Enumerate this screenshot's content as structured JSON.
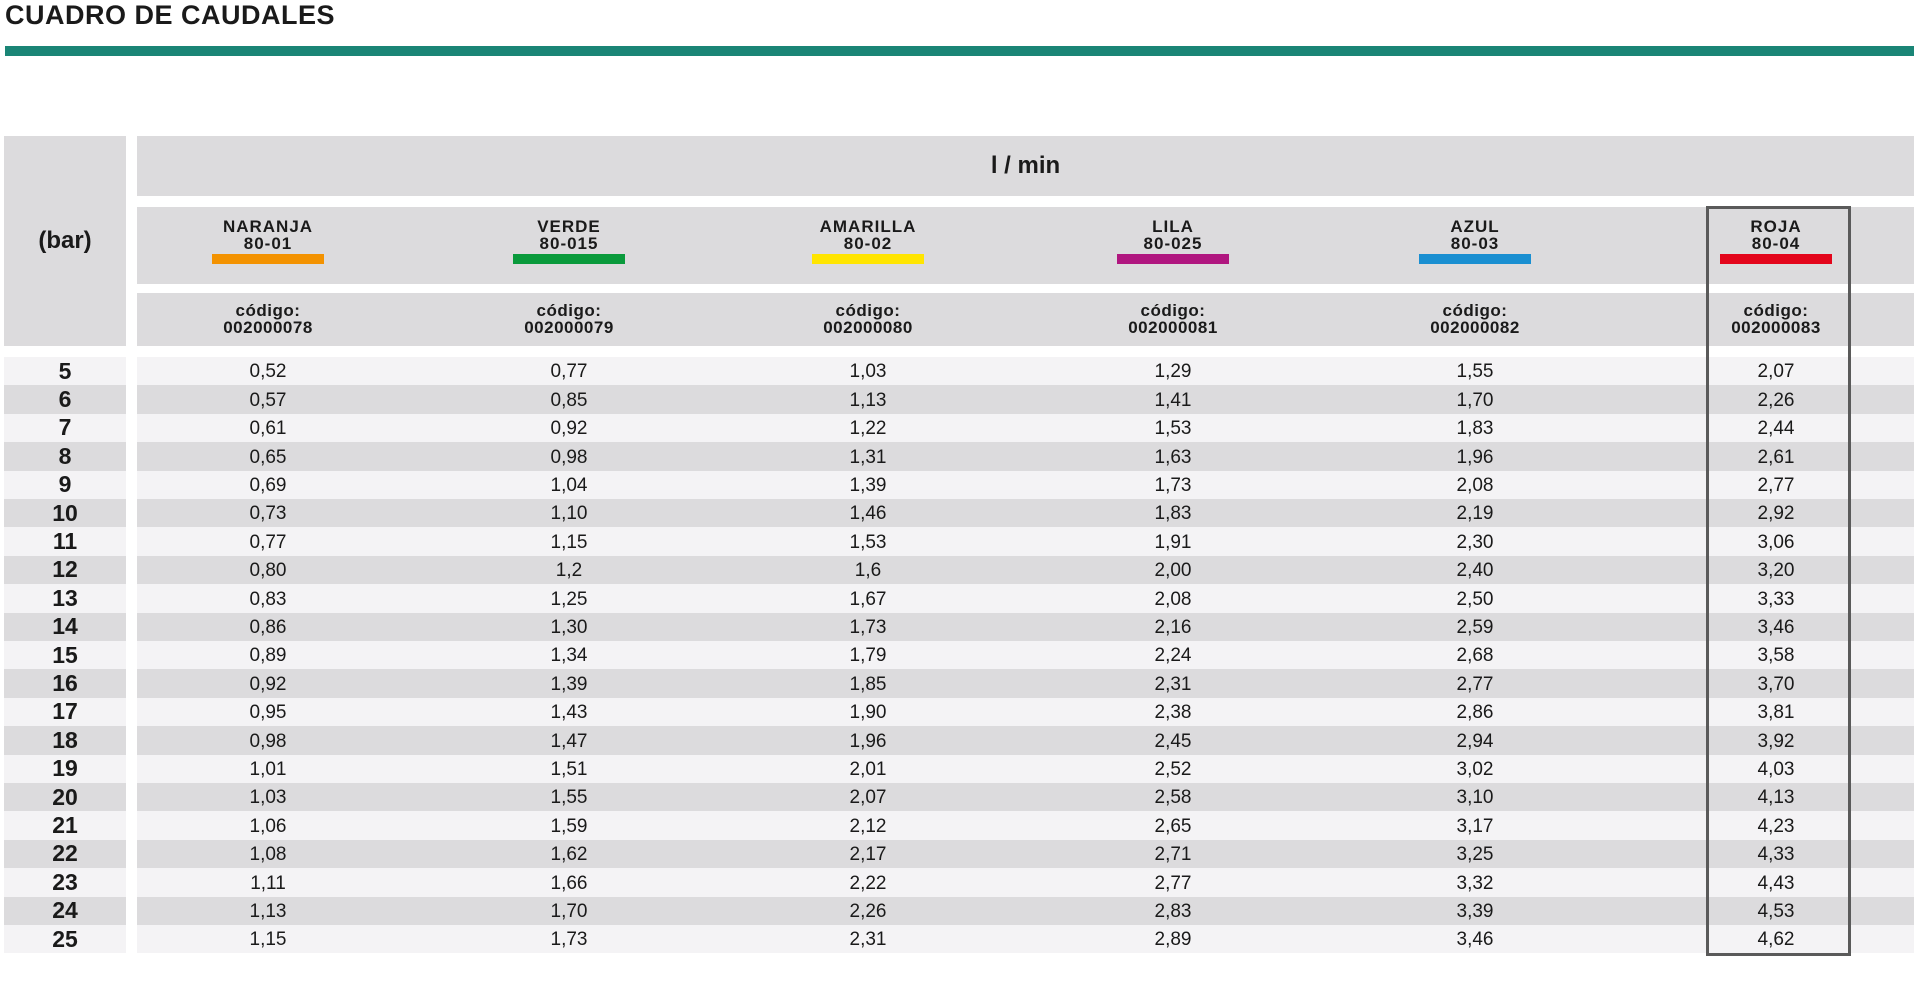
{
  "title": "CUADRO DE CAUDALES",
  "header": {
    "pressure_label": "(bar)",
    "unit_label": "l / min",
    "code_prefix": "código:"
  },
  "nozzles": [
    {
      "name": "NARANJA",
      "model": "80-01",
      "color": "#f39200",
      "code": "002000078"
    },
    {
      "name": "VERDE",
      "model": "80-015",
      "color": "#0a9a3c",
      "code": "002000079"
    },
    {
      "name": "AMARILLA",
      "model": "80-02",
      "color": "#ffe500",
      "code": "002000080"
    },
    {
      "name": "LILA",
      "model": "80-025",
      "color": "#b0167f",
      "code": "002000081"
    },
    {
      "name": "AZUL",
      "model": "80-03",
      "color": "#1a8fd1",
      "code": "002000082"
    },
    {
      "name": "ROJA",
      "model": "80-04",
      "color": "#e3051b",
      "code": "002000083"
    }
  ],
  "colors": {
    "accent_rule": "#1a8576",
    "header_fill": "#dcdbdd",
    "row_light": "#f4f3f5",
    "row_dark": "#dcdbdd",
    "highlight_border": "#5a5a5a"
  },
  "rows": [
    {
      "bar": "5",
      "values": [
        "0,52",
        "0,77",
        "1,03",
        "1,29",
        "1,55",
        "2,07"
      ]
    },
    {
      "bar": "6",
      "values": [
        "0,57",
        "0,85",
        "1,13",
        "1,41",
        "1,70",
        "2,26"
      ]
    },
    {
      "bar": "7",
      "values": [
        "0,61",
        "0,92",
        "1,22",
        "1,53",
        "1,83",
        "2,44"
      ]
    },
    {
      "bar": "8",
      "values": [
        "0,65",
        "0,98",
        "1,31",
        "1,63",
        "1,96",
        "2,61"
      ]
    },
    {
      "bar": "9",
      "values": [
        "0,69",
        "1,04",
        "1,39",
        "1,73",
        "2,08",
        "2,77"
      ]
    },
    {
      "bar": "10",
      "values": [
        "0,73",
        "1,10",
        "1,46",
        "1,83",
        "2,19",
        "2,92"
      ]
    },
    {
      "bar": "11",
      "values": [
        "0,77",
        "1,15",
        "1,53",
        "1,91",
        "2,30",
        "3,06"
      ]
    },
    {
      "bar": "12",
      "values": [
        "0,80",
        "1,2",
        "1,6",
        "2,00",
        "2,40",
        "3,20"
      ]
    },
    {
      "bar": "13",
      "values": [
        "0,83",
        "1,25",
        "1,67",
        "2,08",
        "2,50",
        "3,33"
      ]
    },
    {
      "bar": "14",
      "values": [
        "0,86",
        "1,30",
        "1,73",
        "2,16",
        "2,59",
        "3,46"
      ]
    },
    {
      "bar": "15",
      "values": [
        "0,89",
        "1,34",
        "1,79",
        "2,24",
        "2,68",
        "3,58"
      ]
    },
    {
      "bar": "16",
      "values": [
        "0,92",
        "1,39",
        "1,85",
        "2,31",
        "2,77",
        "3,70"
      ]
    },
    {
      "bar": "17",
      "values": [
        "0,95",
        "1,43",
        "1,90",
        "2,38",
        "2,86",
        "3,81"
      ]
    },
    {
      "bar": "18",
      "values": [
        "0,98",
        "1,47",
        "1,96",
        "2,45",
        "2,94",
        "3,92"
      ]
    },
    {
      "bar": "19",
      "values": [
        "1,01",
        "1,51",
        "2,01",
        "2,52",
        "3,02",
        "4,03"
      ]
    },
    {
      "bar": "20",
      "values": [
        "1,03",
        "1,55",
        "2,07",
        "2,58",
        "3,10",
        "4,13"
      ]
    },
    {
      "bar": "21",
      "values": [
        "1,06",
        "1,59",
        "2,12",
        "2,65",
        "3,17",
        "4,23"
      ]
    },
    {
      "bar": "22",
      "values": [
        "1,08",
        "1,62",
        "2,17",
        "2,71",
        "3,25",
        "4,33"
      ]
    },
    {
      "bar": "23",
      "values": [
        "1,11",
        "1,66",
        "2,22",
        "2,77",
        "3,32",
        "4,43"
      ]
    },
    {
      "bar": "24",
      "values": [
        "1,13",
        "1,70",
        "2,26",
        "2,83",
        "3,39",
        "4,53"
      ]
    },
    {
      "bar": "25",
      "values": [
        "1,15",
        "1,73",
        "2,31",
        "2,89",
        "3,46",
        "4,62"
      ]
    }
  ]
}
